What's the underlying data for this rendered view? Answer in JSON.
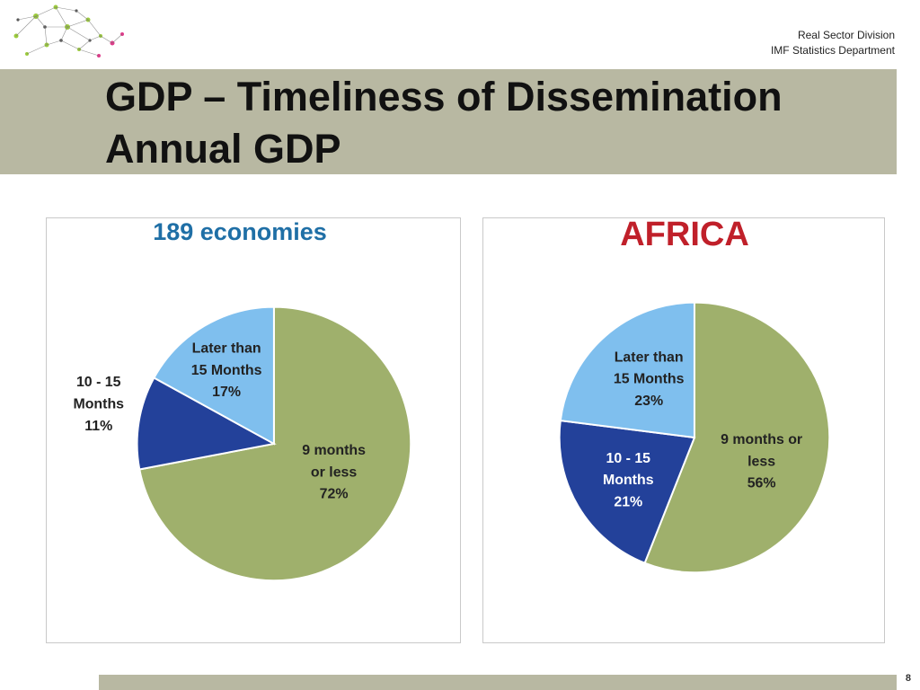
{
  "header": {
    "org_line1": "Real Sector Division",
    "org_line2": "IMF Statistics Department"
  },
  "title": {
    "line1": "GDP – Timeliness of Dissemination",
    "line2": "Annual GDP"
  },
  "page_number": "8",
  "colors": {
    "slice_9_months": "#9fb06c",
    "slice_10_15": "#23419a",
    "slice_later_15": "#7fbfee",
    "title_189": "#1f6fa6",
    "title_africa": "#c0202a",
    "band": "#b8b8a2"
  },
  "chart_data": [
    {
      "type": "pie",
      "title": "189 economies",
      "title_color": "#1f6fa6",
      "slices": [
        {
          "key": "9m",
          "label_lines": [
            "9 months",
            "or less",
            "72%"
          ],
          "value": 72,
          "color": "#9fb06c"
        },
        {
          "key": "10-15",
          "label_lines": [
            "10 - 15",
            "Months",
            "11%"
          ],
          "value": 11,
          "color": "#23419a"
        },
        {
          "key": "later15",
          "label_lines": [
            "Later than",
            "15 Months",
            "17%"
          ],
          "value": 17,
          "color": "#7fbfee"
        }
      ]
    },
    {
      "type": "pie",
      "title": "AFRICA",
      "title_color": "#c0202a",
      "slices": [
        {
          "key": "9m",
          "label_lines": [
            "9 months or",
            "less",
            "56%"
          ],
          "value": 56,
          "color": "#9fb06c"
        },
        {
          "key": "10-15",
          "label_lines": [
            "10 - 15",
            "Months",
            "21%"
          ],
          "value": 21,
          "color": "#23419a"
        },
        {
          "key": "later15",
          "label_lines": [
            "Later than",
            "15 Months",
            "23%"
          ],
          "value": 23,
          "color": "#7fbfee"
        }
      ]
    }
  ]
}
